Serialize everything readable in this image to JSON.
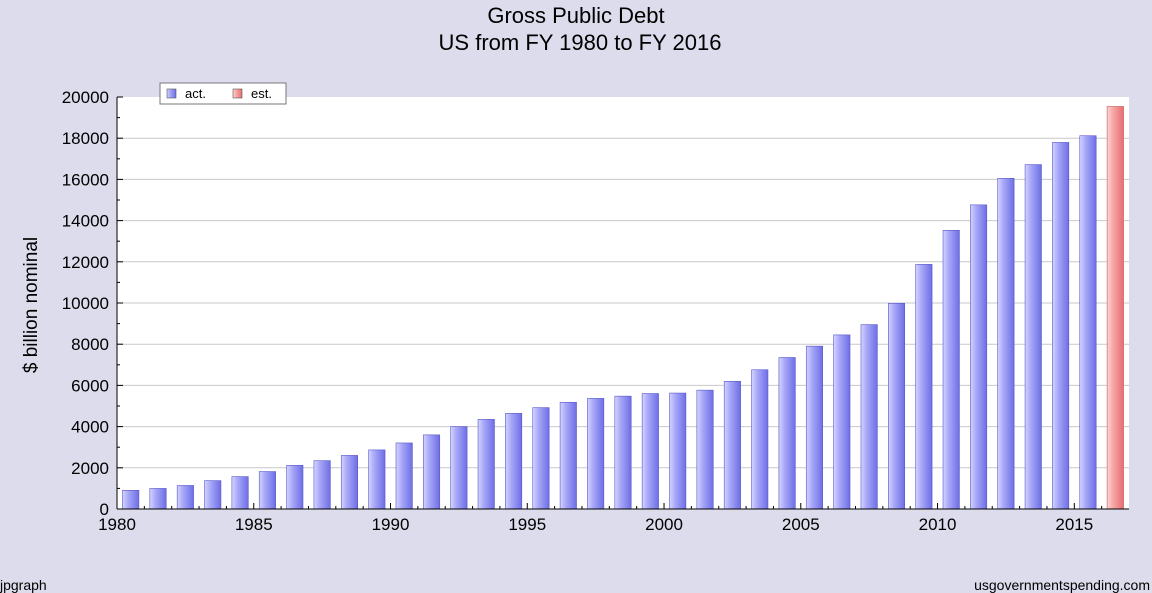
{
  "chart_data": {
    "type": "bar",
    "title": "Gross Public Debt",
    "subtitle": "US from FY 1980 to FY 2016",
    "xlabel": "",
    "ylabel": "$ billion nominal",
    "ylim": [
      0,
      20000
    ],
    "yticks": [
      0,
      2000,
      4000,
      6000,
      8000,
      10000,
      12000,
      14000,
      16000,
      18000,
      20000
    ],
    "xtick_labels": [
      "1980",
      "1985",
      "1990",
      "1995",
      "2000",
      "2005",
      "2010",
      "2015"
    ],
    "grid": true,
    "legend_position": "top-left",
    "categories": [
      1980,
      1981,
      1982,
      1983,
      1984,
      1985,
      1986,
      1987,
      1988,
      1989,
      1990,
      1991,
      1992,
      1993,
      1994,
      1995,
      1996,
      1997,
      1998,
      1999,
      2000,
      2001,
      2002,
      2003,
      2004,
      2005,
      2006,
      2007,
      2008,
      2009,
      2010,
      2011,
      2012,
      2013,
      2014,
      2015,
      2016
    ],
    "series": [
      {
        "name": "act.",
        "color": "#8a8aee",
        "values": [
          908,
          998,
          1142,
          1377,
          1572,
          1817,
          2120,
          2346,
          2601,
          2868,
          3206,
          3598,
          4002,
          4351,
          4643,
          4921,
          5181,
          5369,
          5478,
          5605,
          5628,
          5769,
          6198,
          6760,
          7354,
          7905,
          8451,
          8951,
          9986,
          11876,
          13529,
          14764,
          16051,
          16719,
          17794,
          18120,
          null
        ]
      },
      {
        "name": "est.",
        "color": "#ee8a8a",
        "values": [
          null,
          null,
          null,
          null,
          null,
          null,
          null,
          null,
          null,
          null,
          null,
          null,
          null,
          null,
          null,
          null,
          null,
          null,
          null,
          null,
          null,
          null,
          null,
          null,
          null,
          null,
          null,
          null,
          null,
          null,
          null,
          null,
          null,
          null,
          null,
          null,
          19540
        ]
      }
    ]
  },
  "footer": {
    "left": "jpgraph",
    "right": "usgovernmentspending.com"
  }
}
